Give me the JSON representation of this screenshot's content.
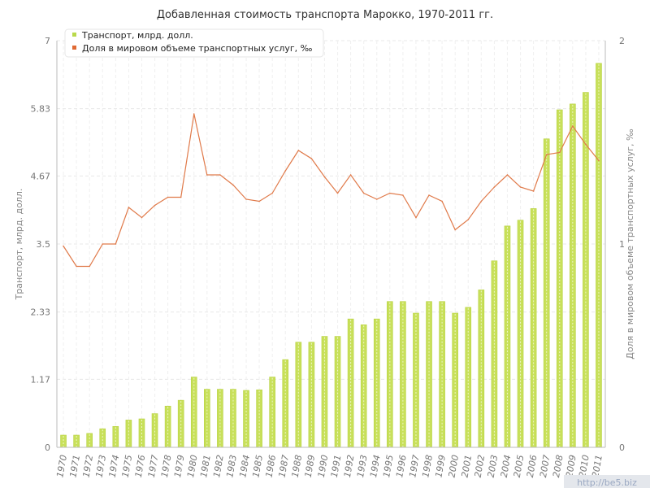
{
  "chart_data": {
    "type": "bar+line",
    "title": "Добавленная стоимость транспорта Марокко, 1970-2011 гг.",
    "categories": [
      "1970",
      "1971",
      "1972",
      "1973",
      "1974",
      "1975",
      "1976",
      "1977",
      "1978",
      "1979",
      "1980",
      "1981",
      "1982",
      "1983",
      "1984",
      "1985",
      "1986",
      "1987",
      "1988",
      "1989",
      "1990",
      "1991",
      "1992",
      "1993",
      "1994",
      "1995",
      "1996",
      "1997",
      "1998",
      "1999",
      "2000",
      "2001",
      "2002",
      "2003",
      "2004",
      "2005",
      "2006",
      "2007",
      "2008",
      "2009",
      "2010",
      "2011"
    ],
    "series": [
      {
        "name": "Транспорт, млрд. долл.",
        "type": "bar",
        "axis": "left",
        "color": "#c8e05a",
        "values": [
          0.21,
          0.21,
          0.24,
          0.32,
          0.36,
          0.47,
          0.49,
          0.58,
          0.71,
          0.81,
          1.21,
          1.0,
          1.0,
          1.0,
          0.98,
          0.99,
          1.21,
          1.51,
          1.81,
          1.81,
          1.91,
          1.91,
          2.21,
          2.11,
          2.21,
          2.51,
          2.51,
          2.31,
          2.51,
          2.51,
          2.31,
          2.41,
          2.71,
          3.21,
          3.81,
          3.91,
          4.11,
          5.31,
          5.81,
          5.91,
          6.11,
          6.61
        ]
      },
      {
        "name": "Доля в мировом объеме транспортных услуг, ‰",
        "type": "line",
        "axis": "right",
        "color": "#e07a4a",
        "values": [
          0.99,
          0.89,
          0.89,
          1.0,
          1.0,
          1.18,
          1.13,
          1.19,
          1.23,
          1.23,
          1.64,
          1.34,
          1.34,
          1.29,
          1.22,
          1.21,
          1.25,
          1.36,
          1.46,
          1.42,
          1.33,
          1.25,
          1.34,
          1.25,
          1.22,
          1.25,
          1.24,
          1.13,
          1.24,
          1.21,
          1.07,
          1.12,
          1.21,
          1.28,
          1.34,
          1.28,
          1.26,
          1.44,
          1.45,
          1.58,
          1.49,
          1.41
        ]
      }
    ],
    "y_left": {
      "label": "Транспорт, млрд. долл.",
      "ylim": [
        0,
        7
      ],
      "ticks": [
        "0",
        "1.17",
        "2.33",
        "3.5",
        "4.67",
        "5.83",
        "7"
      ]
    },
    "y_right": {
      "label": "Доля в мировом объеме транспортных услуг, ‰",
      "ylim": [
        0,
        2
      ],
      "ticks": [
        "0",
        "1",
        "2"
      ]
    },
    "grid": true,
    "legend_position": "top-left",
    "watermark": "http://be5.biz"
  }
}
